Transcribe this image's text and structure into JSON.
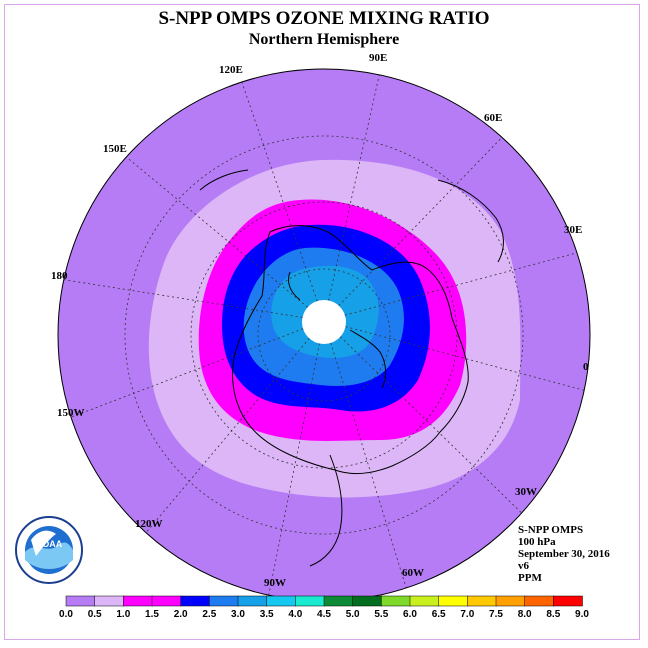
{
  "title": "S-NPP OMPS OZONE MIXING RATIO",
  "subtitle": "Northern Hemisphere",
  "longitude_labels": [
    "90E",
    "60E",
    "30E",
    "0",
    "30W",
    "60W",
    "90W",
    "120W",
    "150W",
    "180",
    "150E",
    "120E"
  ],
  "info": {
    "instrument": "S-NPP OMPS",
    "level": "100 hPa",
    "date": "September 30, 2016",
    "version": "v6",
    "units": "PPM"
  },
  "colorbar": {
    "ticks": [
      "0.0",
      "0.5",
      "1.0",
      "1.5",
      "2.0",
      "2.5",
      "3.0",
      "3.5",
      "4.0",
      "4.5",
      "5.0",
      "5.5",
      "6.0",
      "6.5",
      "7.0",
      "7.5",
      "8.0",
      "8.5",
      "9.0"
    ],
    "colors": [
      "#b57cf5",
      "#dcb6f7",
      "#ff00ff",
      "#ff00ff",
      "#0000ff",
      "#1e7cf0",
      "#16a0e8",
      "#15c8f0",
      "#19ead0",
      "#0c8a35",
      "#006e1e",
      "#7ed92a",
      "#c8f01e",
      "#ffff00",
      "#ffc800",
      "#ffa000",
      "#ff6400",
      "#ff0000",
      "#8b5a3c"
    ]
  },
  "logo": {
    "text": "NOAA"
  },
  "colors": {
    "outer": "#b57cf5",
    "light": "#dcb6f7",
    "magenta": "#ff00ff",
    "blue": "#0000ff",
    "mid_blue": "#1e7cf0",
    "cyan_blue": "#16a0e8",
    "pole": "#ffffff"
  }
}
